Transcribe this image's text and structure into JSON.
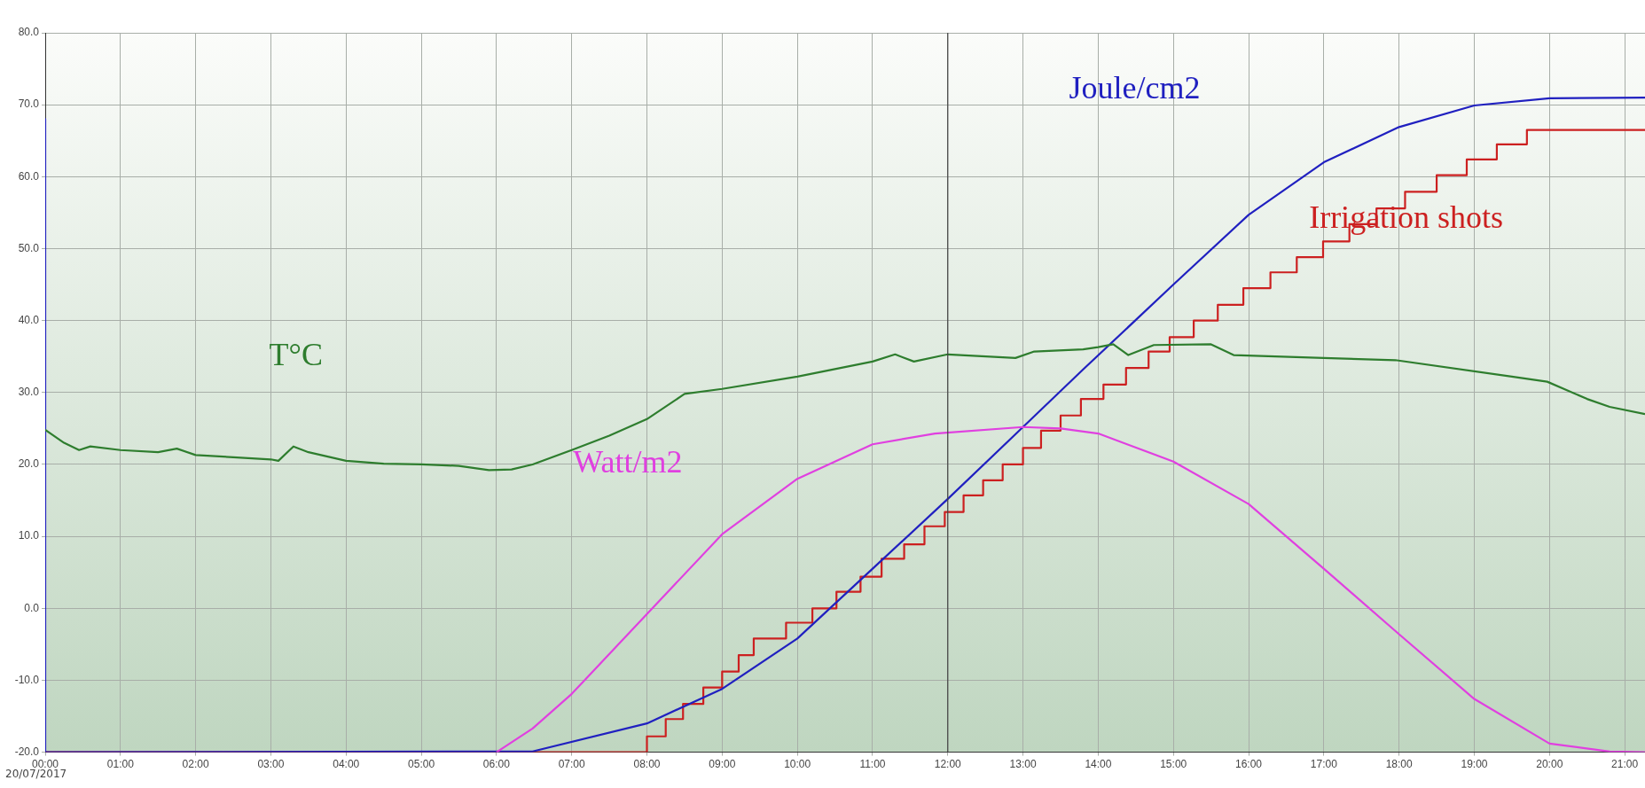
{
  "chart_data": {
    "type": "line",
    "xlim": [
      0,
      21.27
    ],
    "ylim": [
      -20,
      80
    ],
    "yticks": [
      {
        "value": -20,
        "label": "-20.0"
      },
      {
        "value": -10,
        "label": "-10.0"
      },
      {
        "value": 0,
        "label": "0.0"
      },
      {
        "value": 10,
        "label": "10.0"
      },
      {
        "value": 20,
        "label": "20.0"
      },
      {
        "value": 30,
        "label": "30.0"
      },
      {
        "value": 40,
        "label": "40.0"
      },
      {
        "value": 50,
        "label": "50.0"
      },
      {
        "value": 60,
        "label": "60.0"
      },
      {
        "value": 70,
        "label": "70.0"
      },
      {
        "value": 80,
        "label": "80.0"
      }
    ],
    "xticks": [
      {
        "value": 0,
        "label": "00:00"
      },
      {
        "value": 1,
        "label": "01:00"
      },
      {
        "value": 2,
        "label": "02:00"
      },
      {
        "value": 3,
        "label": "03:00"
      },
      {
        "value": 4,
        "label": "04:00"
      },
      {
        "value": 5,
        "label": "05:00"
      },
      {
        "value": 6,
        "label": "06:00"
      },
      {
        "value": 7,
        "label": "07:00"
      },
      {
        "value": 8,
        "label": "08:00"
      },
      {
        "value": 9,
        "label": "09:00"
      },
      {
        "value": 10,
        "label": "10:00"
      },
      {
        "value": 11,
        "label": "11:00"
      },
      {
        "value": 12,
        "label": "12:00"
      },
      {
        "value": 13,
        "label": "13:00"
      },
      {
        "value": 14,
        "label": "14:00"
      },
      {
        "value": 15,
        "label": "15:00"
      },
      {
        "value": 16,
        "label": "16:00"
      },
      {
        "value": 17,
        "label": "17:00"
      },
      {
        "value": 18,
        "label": "18:00"
      },
      {
        "value": 19,
        "label": "19:00"
      },
      {
        "value": 20,
        "label": "20:00"
      },
      {
        "value": 21,
        "label": "21:00"
      }
    ],
    "series": [
      {
        "name": "T°C",
        "color": "#2e7d2e",
        "x": [
          0,
          0.25,
          0.45,
          0.6,
          1.0,
          1.5,
          1.75,
          2.0,
          2.5,
          3.0,
          3.1,
          3.3,
          3.5,
          4.0,
          4.5,
          5.0,
          5.5,
          5.9,
          6.2,
          6.48,
          7.0,
          7.5,
          8.0,
          8.5,
          9.0,
          10.0,
          11.0,
          11.3,
          11.55,
          12.0,
          12.9,
          13.15,
          13.8,
          14.0,
          14.2,
          14.4,
          14.74,
          15.5,
          15.8,
          17.0,
          17.95,
          19.5,
          19.97,
          20.5,
          20.8,
          21.27
        ],
        "values": [
          24.8,
          23,
          22,
          22.5,
          22,
          21.7,
          22.2,
          21.3,
          21,
          20.7,
          20.5,
          22.5,
          21.7,
          20.5,
          20.1,
          20,
          19.8,
          19.2,
          19.3,
          20,
          22,
          24,
          26.3,
          29.8,
          30.5,
          32.2,
          34.3,
          35.3,
          34.3,
          35.3,
          34.8,
          35.7,
          36,
          36.3,
          36.7,
          35.2,
          36.6,
          36.7,
          35.2,
          34.8,
          34.5,
          32.2,
          31.5,
          29.1,
          28,
          27
        ]
      },
      {
        "name": "Watt/m2",
        "color": "#e040e0",
        "x": [
          6.0,
          6.48,
          7,
          8,
          9,
          10,
          11,
          11.83,
          13,
          13.5,
          14,
          15,
          16,
          17,
          18,
          19,
          20,
          20.8,
          21.27
        ],
        "values": [
          -20,
          -16.7,
          -11.9,
          -0.8,
          10.3,
          18,
          22.8,
          24.3,
          25.2,
          25,
          24.3,
          20.4,
          14.5,
          5.5,
          -3.6,
          -12.6,
          -18.8,
          -19.9,
          -20
        ]
      },
      {
        "name": "Joule/cm2",
        "color": "#2020c0",
        "x": [
          0,
          0,
          6.48,
          8,
          9,
          10,
          11,
          12,
          13,
          13.8,
          15,
          16,
          17,
          18,
          19,
          20,
          21.27
        ],
        "values": [
          68,
          -20,
          -19.9,
          -16,
          -11.2,
          -4.2,
          5.5,
          15.2,
          25.2,
          33.2,
          45,
          54.7,
          62,
          66.9,
          69.9,
          70.9,
          71
        ]
      },
      {
        "name": "Irrigation shots",
        "type": "step",
        "color": "#cc2020",
        "x": [
          0,
          8.0,
          8.25,
          8.48,
          8.75,
          9.0,
          9.22,
          9.42,
          9.85,
          10.2,
          10.52,
          10.84,
          11.12,
          11.42,
          11.69,
          11.96,
          12.21,
          12.47,
          12.73,
          13.0,
          13.24,
          13.5,
          13.77,
          14.07,
          14.37,
          14.67,
          14.95,
          15.27,
          15.59,
          15.93,
          16.29,
          16.64,
          16.99,
          17.34,
          17.7,
          18.08,
          18.5,
          18.9,
          19.3,
          19.7,
          21.27
        ],
        "values": [
          -20,
          -17.8,
          -15.4,
          -13.3,
          -11,
          -8.8,
          -6.5,
          -4.2,
          -2,
          0,
          2.3,
          4.4,
          6.9,
          8.9,
          11.4,
          13.4,
          15.7,
          17.8,
          20,
          22.3,
          24.7,
          26.8,
          29.1,
          31.1,
          33.4,
          35.7,
          37.7,
          40,
          42.2,
          44.5,
          46.7,
          48.8,
          51,
          53.4,
          55.6,
          57.9,
          60.2,
          62.4,
          64.5,
          66.5,
          66.5
        ]
      }
    ],
    "ref_lines": [
      {
        "axis": "x",
        "value": 12,
        "color": "#404040"
      }
    ],
    "annotations": [
      "20/07/2017"
    ],
    "grid": true,
    "legend": false,
    "marker": "none",
    "line_style": "solid"
  }
}
